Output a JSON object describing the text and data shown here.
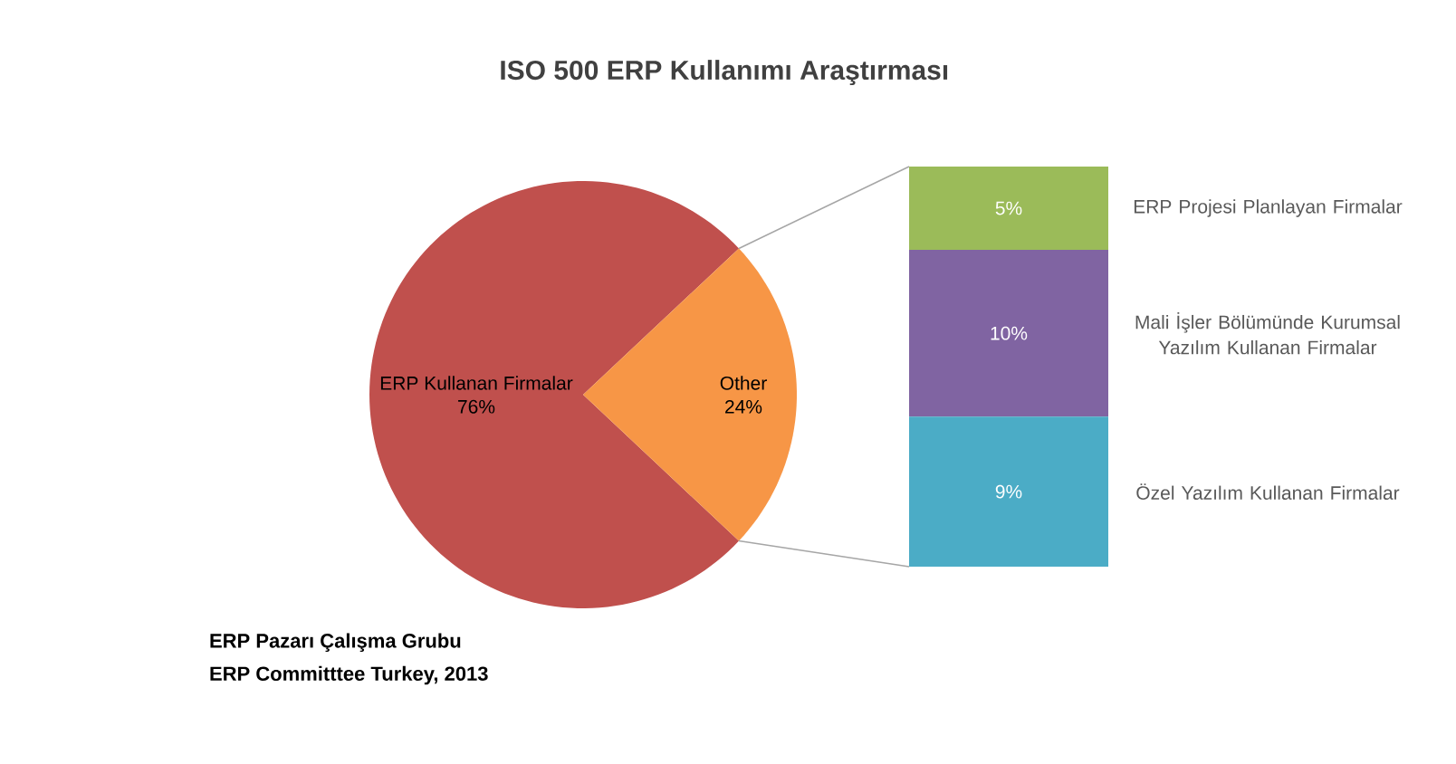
{
  "chart_data": [
    {
      "type": "pie",
      "title": "ISO 500 ERP Kullanımı Araştırması",
      "categories": [
        "ERP Kullanan Firmalar",
        "Other"
      ],
      "values": [
        76,
        24
      ],
      "colors": [
        "#c0504d",
        "#f79646"
      ],
      "value_labels": [
        "76%",
        "24%"
      ],
      "annotations": [
        "ERP Pazarı Çalışma Grubu",
        "ERP Committtee Turkey, 2013"
      ]
    },
    {
      "type": "bar",
      "stacked": true,
      "categories": [
        null
      ],
      "series": [
        {
          "name": "Özel Yazılım Kullanan Firmalar",
          "color": "#4bacc6",
          "values": [
            9
          ],
          "value_labels": [
            "9%"
          ]
        },
        {
          "name": "Mali İşler Bölümünde Kurumsal Yazılım Kullanan Firmalar",
          "color": "#8064a2",
          "values": [
            10
          ],
          "value_labels": [
            "10%"
          ]
        },
        {
          "name": "ERP Projesi Planlayan Firmalar",
          "color": "#9bbb59",
          "values": [
            5
          ],
          "value_labels": [
            "5%"
          ]
        }
      ]
    }
  ]
}
